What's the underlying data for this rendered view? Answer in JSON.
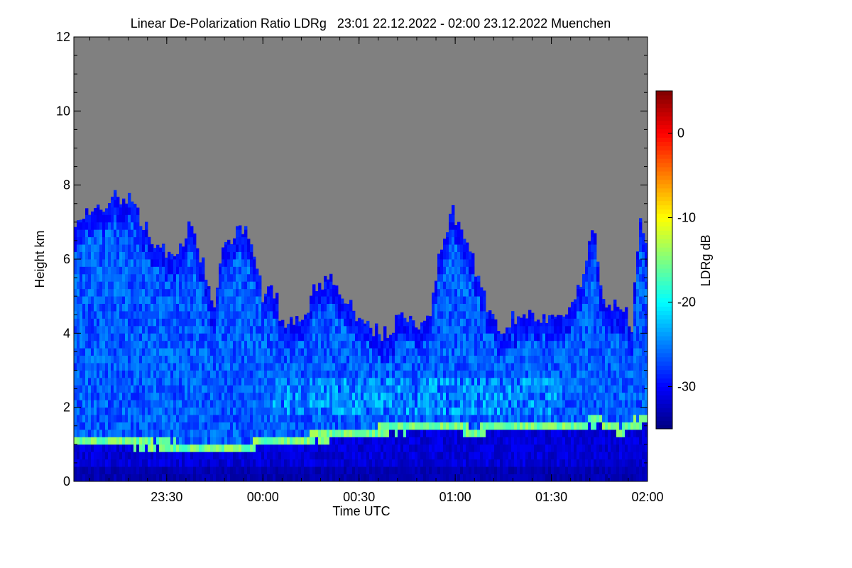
{
  "chart_data": {
    "type": "heatmap",
    "title": "Linear De-Polarization Ratio LDRg   23:01 22.12.2022 - 02:00 23.12.2022 Muenchen",
    "xlabel": "Time UTC",
    "ylabel": "Height km",
    "colorbar_label": "LDRg dB",
    "xlim_hours": [
      -0.983,
      2.0
    ],
    "ylim_km": [
      0,
      12
    ],
    "clim_db": [
      -35,
      5
    ],
    "x_ticks": [
      {
        "hour": -0.5,
        "label": "23:30"
      },
      {
        "hour": 0.0,
        "label": "00:00"
      },
      {
        "hour": 0.5,
        "label": "00:30"
      },
      {
        "hour": 1.0,
        "label": "01:00"
      },
      {
        "hour": 1.5,
        "label": "01:30"
      },
      {
        "hour": 2.0,
        "label": "02:00"
      }
    ],
    "y_ticks": [
      0,
      2,
      4,
      6,
      8,
      10,
      12
    ],
    "colorbar_ticks": [
      0,
      -10,
      -20,
      -30
    ],
    "no_data_color": "#808080",
    "colormap": [
      "#00007f",
      "#0000ff",
      "#007fff",
      "#00ffff",
      "#7fff7f",
      "#ffff00",
      "#ff7f00",
      "#ff0000",
      "#7f0000"
    ],
    "cloud_top_profile_km": [
      [
        -0.983,
        7.1
      ],
      [
        -0.9,
        7.3
      ],
      [
        -0.8,
        7.6
      ],
      [
        -0.7,
        7.7
      ],
      [
        -0.62,
        7.0
      ],
      [
        -0.55,
        6.4
      ],
      [
        -0.45,
        6.0
      ],
      [
        -0.38,
        6.9
      ],
      [
        -0.3,
        5.7
      ],
      [
        -0.25,
        4.6
      ],
      [
        -0.2,
        6.5
      ],
      [
        -0.1,
        6.9
      ],
      [
        -0.04,
        6.2
      ],
      [
        0.0,
        4.9
      ],
      [
        0.05,
        5.3
      ],
      [
        0.1,
        4.3
      ],
      [
        0.2,
        4.3
      ],
      [
        0.27,
        5.2
      ],
      [
        0.35,
        5.4
      ],
      [
        0.45,
        4.8
      ],
      [
        0.55,
        4.1
      ],
      [
        0.65,
        4.0
      ],
      [
        0.72,
        4.5
      ],
      [
        0.8,
        4.1
      ],
      [
        0.88,
        4.7
      ],
      [
        0.92,
        6.1
      ],
      [
        0.98,
        7.4
      ],
      [
        1.05,
        6.6
      ],
      [
        1.15,
        5.0
      ],
      [
        1.22,
        4.1
      ],
      [
        1.3,
        4.4
      ],
      [
        1.45,
        4.4
      ],
      [
        1.55,
        4.4
      ],
      [
        1.65,
        5.3
      ],
      [
        1.72,
        7.0
      ],
      [
        1.78,
        4.4
      ],
      [
        1.85,
        5.0
      ],
      [
        1.92,
        4.1
      ],
      [
        1.96,
        7.2
      ],
      [
        2.0,
        6.4
      ]
    ],
    "boundary_layer_top_km": [
      [
        -0.983,
        1.15
      ],
      [
        -0.7,
        1.05
      ],
      [
        -0.4,
        0.95
      ],
      [
        -0.1,
        0.95
      ],
      [
        0.05,
        1.1
      ],
      [
        0.2,
        1.15
      ],
      [
        0.35,
        1.25
      ],
      [
        0.5,
        1.35
      ],
      [
        0.65,
        1.4
      ],
      [
        0.8,
        1.45
      ],
      [
        1.0,
        1.45
      ],
      [
        1.1,
        1.35
      ],
      [
        1.2,
        1.5
      ],
      [
        1.35,
        1.55
      ],
      [
        1.5,
        1.55
      ],
      [
        1.65,
        1.55
      ],
      [
        1.75,
        1.65
      ],
      [
        1.85,
        1.35
      ],
      [
        1.92,
        1.55
      ],
      [
        2.0,
        1.65
      ]
    ],
    "aerosol_layer_km": {
      "bottom": 1.8,
      "top": 2.8,
      "from_hour": 0.05,
      "to_hour": 1.55
    }
  }
}
